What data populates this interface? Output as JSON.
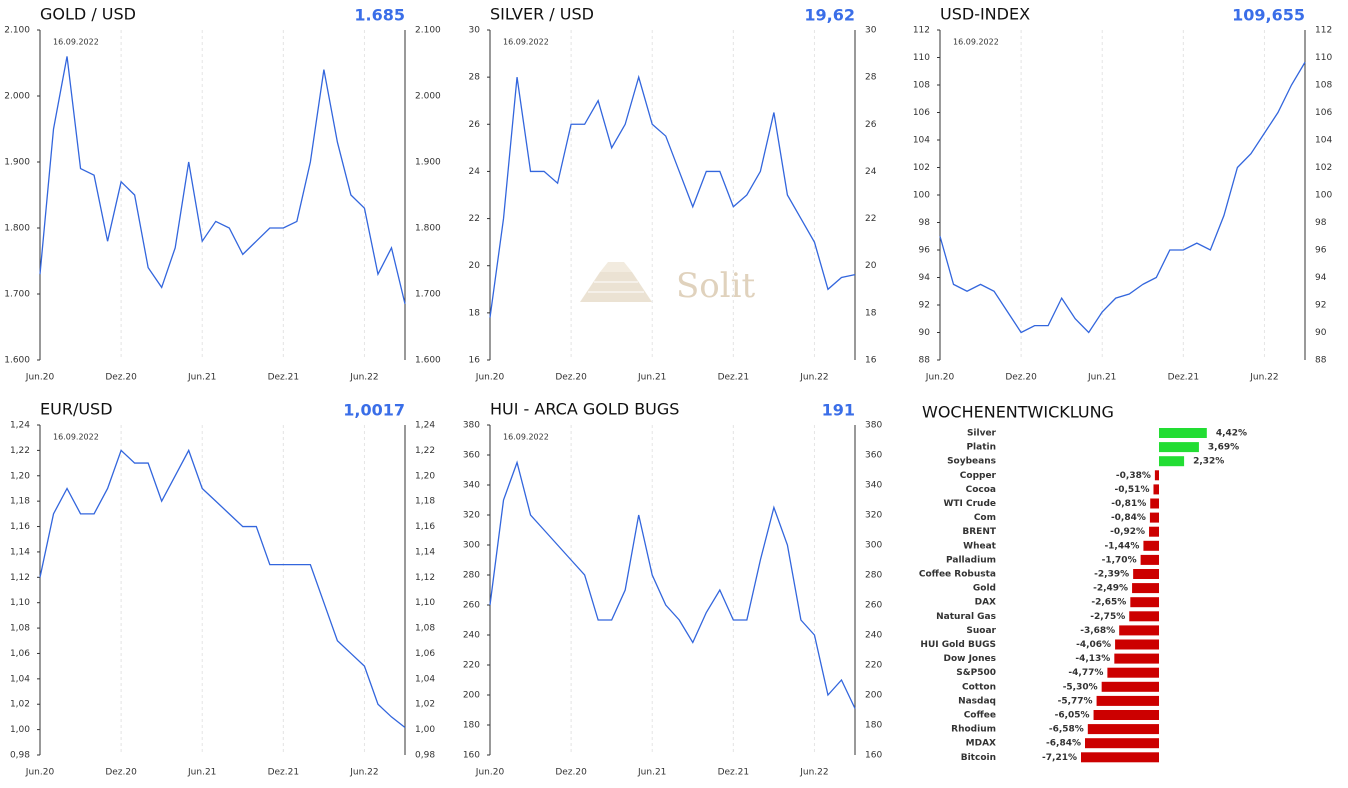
{
  "watermark": "Solit",
  "chart_data": [
    {
      "type": "line",
      "title": "GOLD / USD",
      "last_value": "1.685",
      "annotation": "16.09.2022",
      "color": "#3366dd",
      "grid": true,
      "x": [
        "2020-06",
        "2020-07",
        "2020-08",
        "2020-09",
        "2020-10",
        "2020-11",
        "2020-12",
        "2021-01",
        "2021-02",
        "2021-03",
        "2021-04",
        "2021-05",
        "2021-06",
        "2021-07",
        "2021-08",
        "2021-09",
        "2021-10",
        "2021-11",
        "2021-12",
        "2022-01",
        "2022-02",
        "2022-03",
        "2022-04",
        "2022-05",
        "2022-06",
        "2022-07",
        "2022-08",
        "2022-09"
      ],
      "values": [
        1730,
        1950,
        2060,
        1890,
        1880,
        1780,
        1870,
        1850,
        1740,
        1710,
        1770,
        1900,
        1780,
        1810,
        1800,
        1760,
        1780,
        1800,
        1800,
        1810,
        1900,
        2040,
        1930,
        1850,
        1830,
        1730,
        1770,
        1685
      ],
      "ylim": [
        1600,
        2100
      ],
      "yticks": [
        {
          "value": 1600,
          "label": "1.600"
        },
        {
          "value": 1700,
          "label": "1.700"
        },
        {
          "value": 1800,
          "label": "1.800"
        },
        {
          "value": 1900,
          "label": "1.900"
        },
        {
          "value": 2000,
          "label": "2.000"
        },
        {
          "value": 2100,
          "label": "2.100"
        }
      ],
      "xticks": [
        {
          "value": "2020-06",
          "label": "Jun.20"
        },
        {
          "value": "2020-12",
          "label": "Dez.20"
        },
        {
          "value": "2021-06",
          "label": "Jun.21"
        },
        {
          "value": "2021-12",
          "label": "Dez.21"
        },
        {
          "value": "2022-06",
          "label": "Jun.22"
        }
      ]
    },
    {
      "type": "line",
      "title": "SILVER / USD",
      "last_value": "19,62",
      "annotation": "16.09.2022",
      "color": "#3366dd",
      "grid": true,
      "x": [
        "2020-06",
        "2020-07",
        "2020-08",
        "2020-09",
        "2020-10",
        "2020-11",
        "2020-12",
        "2021-01",
        "2021-02",
        "2021-03",
        "2021-04",
        "2021-05",
        "2021-06",
        "2021-07",
        "2021-08",
        "2021-09",
        "2021-10",
        "2021-11",
        "2021-12",
        "2022-01",
        "2022-02",
        "2022-03",
        "2022-04",
        "2022-05",
        "2022-06",
        "2022-07",
        "2022-08",
        "2022-09"
      ],
      "values": [
        17.8,
        22,
        28,
        24,
        24,
        23.5,
        26,
        26,
        27,
        25,
        26,
        28,
        26,
        25.5,
        24,
        22.5,
        24,
        24,
        22.5,
        23,
        24,
        26.5,
        23,
        22,
        21,
        19,
        19.5,
        19.62
      ],
      "ylim": [
        16,
        30
      ],
      "yticks": [
        16,
        18,
        20,
        22,
        24,
        26,
        28,
        30
      ],
      "xticks": [
        {
          "value": "2020-06",
          "label": "Jun.20"
        },
        {
          "value": "2020-12",
          "label": "Dez.20"
        },
        {
          "value": "2021-06",
          "label": "Jun.21"
        },
        {
          "value": "2021-12",
          "label": "Dez.21"
        },
        {
          "value": "2022-06",
          "label": "Jun.22"
        }
      ]
    },
    {
      "type": "line",
      "title": "USD-INDEX",
      "last_value": "109,655",
      "annotation": "16.09.2022",
      "color": "#3366dd",
      "grid": true,
      "x": [
        "2020-06",
        "2020-07",
        "2020-08",
        "2020-09",
        "2020-10",
        "2020-11",
        "2020-12",
        "2021-01",
        "2021-02",
        "2021-03",
        "2021-04",
        "2021-05",
        "2021-06",
        "2021-07",
        "2021-08",
        "2021-09",
        "2021-10",
        "2021-11",
        "2021-12",
        "2022-01",
        "2022-02",
        "2022-03",
        "2022-04",
        "2022-05",
        "2022-06",
        "2022-07",
        "2022-08",
        "2022-09"
      ],
      "values": [
        97,
        93.5,
        93,
        93.5,
        93,
        91.5,
        90,
        90.5,
        90.5,
        92.5,
        91,
        90,
        91.5,
        92.5,
        92.8,
        93.5,
        94,
        96,
        96,
        96.5,
        96,
        98.5,
        102,
        103,
        104.5,
        106,
        108,
        109.655
      ],
      "ylim": [
        88,
        112
      ],
      "yticks": [
        88,
        90,
        92,
        94,
        96,
        98,
        100,
        102,
        104,
        106,
        108,
        110,
        112
      ],
      "xticks": [
        {
          "value": "2020-06",
          "label": "Jun.20"
        },
        {
          "value": "2020-12",
          "label": "Dez.20"
        },
        {
          "value": "2021-06",
          "label": "Jun.21"
        },
        {
          "value": "2021-12",
          "label": "Dez.21"
        },
        {
          "value": "2022-06",
          "label": "Jun.22"
        }
      ]
    },
    {
      "type": "line",
      "title": "EUR/USD",
      "last_value": "1,0017",
      "annotation": "16.09.2022",
      "color": "#3366dd",
      "grid": true,
      "x": [
        "2020-06",
        "2020-07",
        "2020-08",
        "2020-09",
        "2020-10",
        "2020-11",
        "2020-12",
        "2021-01",
        "2021-02",
        "2021-03",
        "2021-04",
        "2021-05",
        "2021-06",
        "2021-07",
        "2021-08",
        "2021-09",
        "2021-10",
        "2021-11",
        "2021-12",
        "2022-01",
        "2022-02",
        "2022-03",
        "2022-04",
        "2022-05",
        "2022-06",
        "2022-07",
        "2022-08",
        "2022-09"
      ],
      "values": [
        1.12,
        1.17,
        1.19,
        1.17,
        1.17,
        1.19,
        1.22,
        1.21,
        1.21,
        1.18,
        1.2,
        1.22,
        1.19,
        1.18,
        1.17,
        1.16,
        1.16,
        1.13,
        1.13,
        1.13,
        1.13,
        1.1,
        1.07,
        1.06,
        1.05,
        1.02,
        1.01,
        1.0017
      ],
      "ylim": [
        0.98,
        1.24
      ],
      "yticks": [
        {
          "value": 0.98,
          "label": "0,98"
        },
        {
          "value": 1.0,
          "label": "1,00"
        },
        {
          "value": 1.02,
          "label": "1,02"
        },
        {
          "value": 1.04,
          "label": "1,04"
        },
        {
          "value": 1.06,
          "label": "1,06"
        },
        {
          "value": 1.08,
          "label": "1,08"
        },
        {
          "value": 1.1,
          "label": "1,10"
        },
        {
          "value": 1.12,
          "label": "1,12"
        },
        {
          "value": 1.14,
          "label": "1,14"
        },
        {
          "value": 1.16,
          "label": "1,16"
        },
        {
          "value": 1.18,
          "label": "1,18"
        },
        {
          "value": 1.2,
          "label": "1,20"
        },
        {
          "value": 1.22,
          "label": "1,22"
        },
        {
          "value": 1.24,
          "label": "1,24"
        }
      ],
      "xticks": [
        {
          "value": "2020-06",
          "label": "Jun.20"
        },
        {
          "value": "2020-12",
          "label": "Dez.20"
        },
        {
          "value": "2021-06",
          "label": "Jun.21"
        },
        {
          "value": "2021-12",
          "label": "Dez.21"
        },
        {
          "value": "2022-06",
          "label": "Jun.22"
        }
      ]
    },
    {
      "type": "line",
      "title": "HUI - ARCA GOLD BUGS",
      "last_value": "191",
      "annotation": "16.09.2022",
      "color": "#3366dd",
      "grid": true,
      "x": [
        "2020-06",
        "2020-07",
        "2020-08",
        "2020-09",
        "2020-10",
        "2020-11",
        "2020-12",
        "2021-01",
        "2021-02",
        "2021-03",
        "2021-04",
        "2021-05",
        "2021-06",
        "2021-07",
        "2021-08",
        "2021-09",
        "2021-10",
        "2021-11",
        "2021-12",
        "2022-01",
        "2022-02",
        "2022-03",
        "2022-04",
        "2022-05",
        "2022-06",
        "2022-07",
        "2022-08",
        "2022-09"
      ],
      "values": [
        260,
        330,
        355,
        320,
        310,
        300,
        290,
        280,
        250,
        250,
        270,
        320,
        280,
        260,
        250,
        235,
        255,
        270,
        250,
        250,
        290,
        325,
        300,
        250,
        240,
        200,
        210,
        191
      ],
      "ylim": [
        160,
        380
      ],
      "yticks": [
        160,
        180,
        200,
        220,
        240,
        260,
        280,
        300,
        320,
        340,
        360,
        380
      ],
      "xticks": [
        {
          "value": "2020-06",
          "label": "Jun.20"
        },
        {
          "value": "2020-12",
          "label": "Dez.20"
        },
        {
          "value": "2021-06",
          "label": "Jun.21"
        },
        {
          "value": "2021-12",
          "label": "Dez.21"
        },
        {
          "value": "2022-06",
          "label": "Jun.22"
        }
      ]
    },
    {
      "type": "hbar",
      "title": "WOCHENENTWICKLUNG",
      "positive_color": "#22dd33",
      "negative_color": "#cc0000",
      "categories": [
        "Silver",
        "Platin",
        "Soybeans",
        "Copper",
        "Cocoa",
        "WTI Crude",
        "Com",
        "BRENT",
        "Wheat",
        "Palladium",
        "Coffee Robusta",
        "Gold",
        "DAX",
        "Natural Gas",
        "Suoar",
        "HUI Gold BUGS",
        "Dow Jones",
        "S&P500",
        "Cotton",
        "Nasdaq",
        "Coffee",
        "Rhodium",
        "MDAX",
        "Bitcoin"
      ],
      "values": [
        4.42,
        3.69,
        2.32,
        -0.38,
        -0.51,
        -0.81,
        -0.84,
        -0.92,
        -1.44,
        -1.7,
        -2.39,
        -2.49,
        -2.65,
        -2.75,
        -3.68,
        -4.06,
        -4.13,
        -4.77,
        -5.3,
        -5.77,
        -6.05,
        -6.58,
        -6.84,
        -7.21
      ],
      "value_labels": [
        "4,42%",
        "3,69%",
        "2,32%",
        "-0,38%",
        "-0,51%",
        "-0,81%",
        "-0,84%",
        "-0,92%",
        "-1,44%",
        "-1,70%",
        "-2,39%",
        "-2,49%",
        "-2,65%",
        "-2,75%",
        "-3,68%",
        "-4,06%",
        "-4,13%",
        "-4,77%",
        "-5,30%",
        "-5,77%",
        "-6,05%",
        "-6,58%",
        "-6,84%",
        "-7,21%"
      ]
    }
  ]
}
